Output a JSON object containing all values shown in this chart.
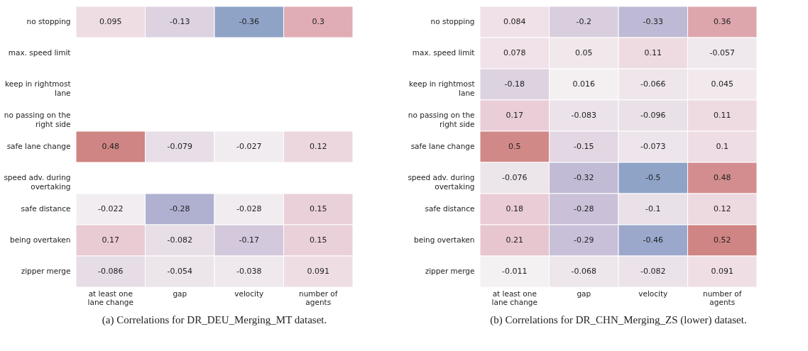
{
  "chart_data": [
    {
      "type": "heatmap",
      "title": "(a) Correlations for DR_DEU_Merging_MT dataset.",
      "categories": [
        "at least one lane change",
        "gap",
        "velocity",
        "number of agents"
      ],
      "y_categories": [
        "no stopping",
        "max. speed limit",
        "keep in rightmost lane",
        "no passing on the right side",
        "safe lane change",
        "speed adv. during overtaking",
        "safe distance",
        "being overtaken",
        "zipper merge"
      ],
      "data_labels": true,
      "cells": [
        [
          0.095,
          -0.13,
          -0.36,
          0.3
        ],
        [
          null,
          null,
          null,
          null
        ],
        [
          null,
          null,
          null,
          null
        ],
        [
          null,
          null,
          null,
          null
        ],
        [
          0.48,
          -0.079,
          -0.027,
          0.12
        ],
        [
          null,
          null,
          null,
          null
        ],
        [
          -0.022,
          -0.28,
          -0.028,
          0.15
        ],
        [
          0.17,
          -0.082,
          -0.17,
          0.15
        ],
        [
          -0.086,
          -0.054,
          -0.038,
          0.091
        ]
      ]
    },
    {
      "type": "heatmap",
      "title": "(b) Correlations for DR_CHN_Merging_ZS (lower) dataset.",
      "categories": [
        "at least one lane change",
        "gap",
        "velocity",
        "number of agents"
      ],
      "y_categories": [
        "no stopping",
        "max. speed limit",
        "keep in rightmost lane",
        "no passing on the right side",
        "safe lane change",
        "speed adv. during overtaking",
        "safe distance",
        "being overtaken",
        "zipper merge"
      ],
      "data_labels": true,
      "cells": [
        [
          0.084,
          -0.2,
          -0.33,
          0.36
        ],
        [
          0.078,
          0.05,
          0.11,
          -0.057
        ],
        [
          -0.18,
          0.016,
          -0.066,
          0.045
        ],
        [
          0.17,
          -0.083,
          -0.096,
          0.11
        ],
        [
          0.5,
          -0.15,
          -0.073,
          0.1
        ],
        [
          -0.076,
          -0.32,
          -0.5,
          0.48
        ],
        [
          0.18,
          -0.28,
          -0.1,
          0.12
        ],
        [
          0.21,
          -0.29,
          -0.46,
          0.52
        ],
        [
          -0.011,
          -0.068,
          -0.082,
          0.091
        ]
      ]
    }
  ]
}
